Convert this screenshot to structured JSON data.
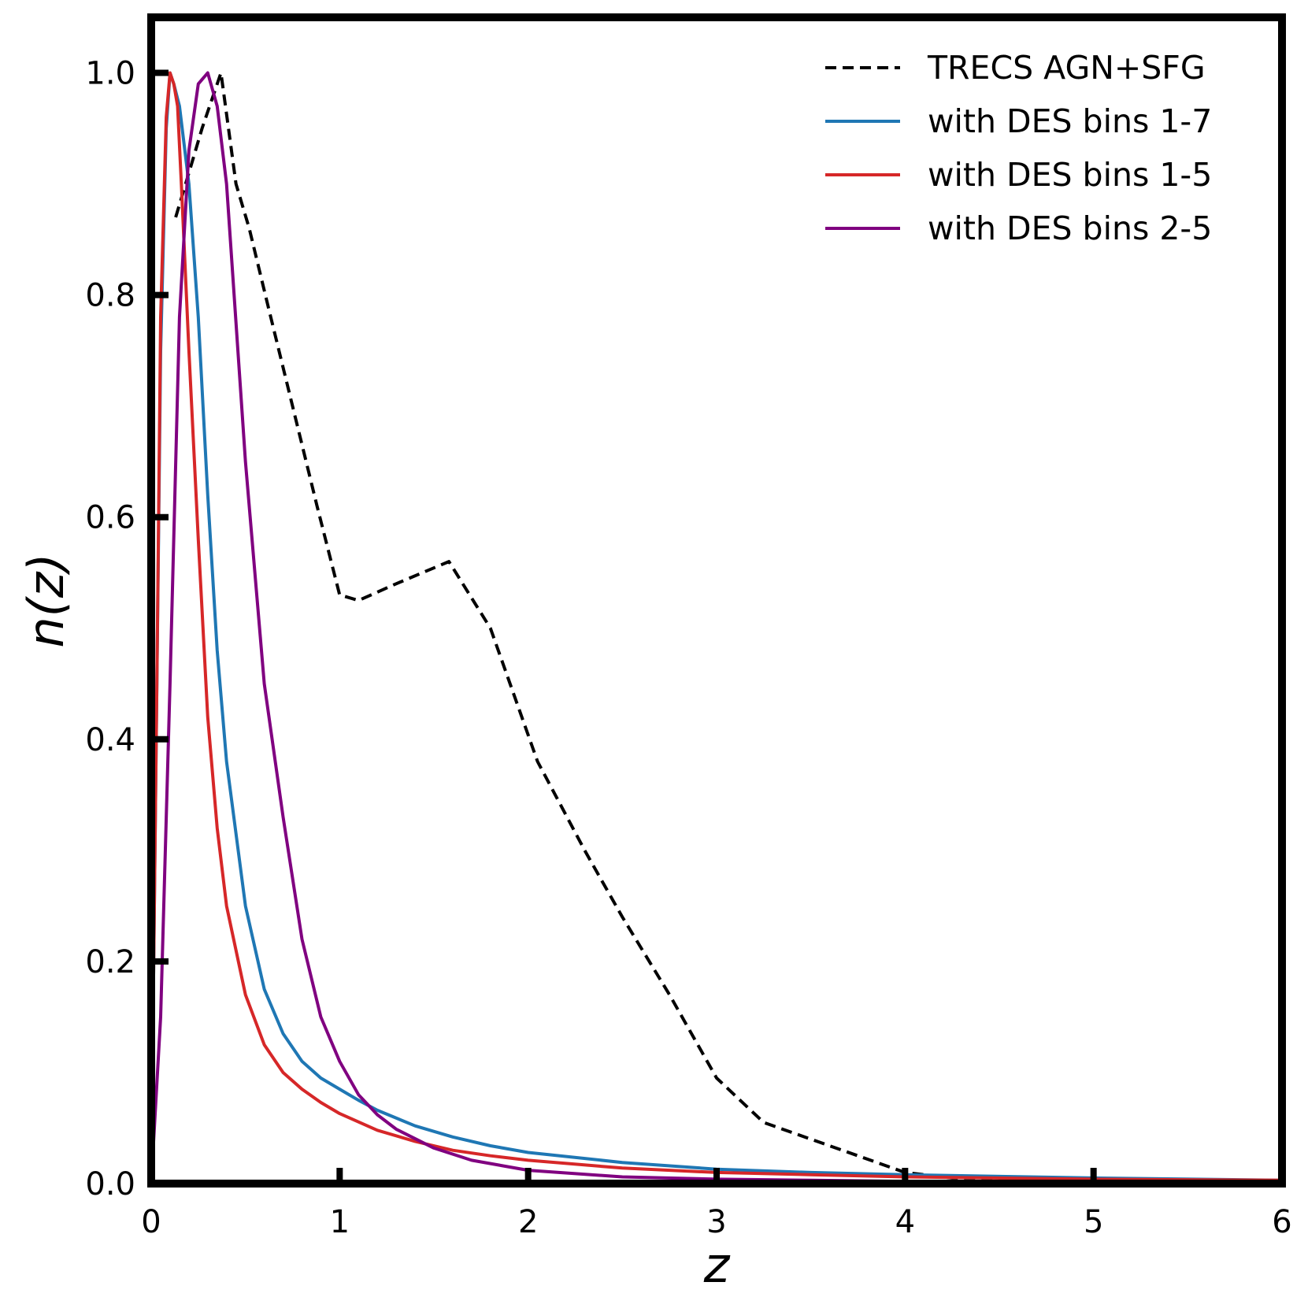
{
  "chart_data": {
    "type": "line",
    "title": "",
    "xlabel": "z",
    "ylabel": "n(z)",
    "xlim": [
      0,
      6
    ],
    "ylim": [
      0,
      1.05
    ],
    "xticks": [
      0,
      1,
      2,
      3,
      4,
      5,
      6
    ],
    "xtick_labels": [
      "0",
      "1",
      "2",
      "3",
      "4",
      "5",
      "6"
    ],
    "yticks": [
      0.0,
      0.2,
      0.4,
      0.6,
      0.8,
      1.0
    ],
    "ytick_labels": [
      "0.0",
      "0.2",
      "0.4",
      "0.6",
      "0.8",
      "1.0"
    ],
    "grid": false,
    "legend_position": "top-right",
    "series": [
      {
        "name": "TRECS AGN+SFG",
        "color": "#000000",
        "style": "dashed",
        "x": [
          0.13,
          0.2,
          0.27,
          0.33,
          0.37,
          0.45,
          0.52,
          0.62,
          0.75,
          0.88,
          1.0,
          1.1,
          1.3,
          1.58,
          1.8,
          2.05,
          2.3,
          2.5,
          2.75,
          3.0,
          3.25,
          3.5,
          3.75,
          4.0,
          4.25,
          4.5,
          5.0,
          6.0
        ],
        "y": [
          0.87,
          0.91,
          0.95,
          0.98,
          1.0,
          0.9,
          0.86,
          0.79,
          0.7,
          0.61,
          0.53,
          0.525,
          0.54,
          0.56,
          0.5,
          0.38,
          0.3,
          0.24,
          0.17,
          0.095,
          0.055,
          0.04,
          0.025,
          0.01,
          0.005,
          0.005,
          0.003,
          0.002
        ]
      },
      {
        "name": "with DES bins 1-7",
        "color": "#1f77b4",
        "style": "solid",
        "x": [
          0.0,
          0.03,
          0.05,
          0.08,
          0.1,
          0.12,
          0.15,
          0.2,
          0.25,
          0.3,
          0.35,
          0.4,
          0.5,
          0.6,
          0.7,
          0.8,
          0.9,
          1.0,
          1.1,
          1.2,
          1.4,
          1.6,
          1.8,
          2.0,
          2.5,
          3.0,
          3.5,
          4.0,
          5.0,
          6.0
        ],
        "y": [
          0.0,
          0.45,
          0.75,
          0.95,
          1.0,
          0.99,
          0.97,
          0.9,
          0.78,
          0.62,
          0.48,
          0.38,
          0.25,
          0.175,
          0.135,
          0.11,
          0.095,
          0.085,
          0.075,
          0.066,
          0.052,
          0.042,
          0.034,
          0.028,
          0.019,
          0.013,
          0.01,
          0.008,
          0.005,
          0.003
        ]
      },
      {
        "name": "with DES bins 1-5",
        "color": "#d62728",
        "style": "solid",
        "x": [
          0.0,
          0.03,
          0.05,
          0.08,
          0.1,
          0.12,
          0.14,
          0.16,
          0.2,
          0.25,
          0.3,
          0.35,
          0.4,
          0.5,
          0.6,
          0.7,
          0.8,
          0.9,
          1.0,
          1.2,
          1.4,
          1.6,
          1.8,
          2.0,
          2.5,
          3.0,
          3.5,
          4.0,
          5.0,
          6.0
        ],
        "y": [
          0.0,
          0.45,
          0.78,
          0.96,
          1.0,
          0.99,
          0.97,
          0.9,
          0.75,
          0.58,
          0.42,
          0.32,
          0.25,
          0.17,
          0.125,
          0.1,
          0.085,
          0.073,
          0.063,
          0.048,
          0.038,
          0.03,
          0.025,
          0.021,
          0.014,
          0.01,
          0.008,
          0.006,
          0.004,
          0.003
        ]
      },
      {
        "name": "with DES bins 2-5",
        "color": "#800080",
        "style": "solid",
        "x": [
          0.0,
          0.05,
          0.1,
          0.15,
          0.2,
          0.25,
          0.3,
          0.35,
          0.4,
          0.5,
          0.6,
          0.7,
          0.8,
          0.9,
          1.0,
          1.1,
          1.2,
          1.3,
          1.5,
          1.7,
          2.0,
          2.5,
          3.0,
          3.5,
          4.0,
          5.0,
          6.0
        ],
        "y": [
          0.0,
          0.15,
          0.45,
          0.78,
          0.93,
          0.99,
          1.0,
          0.97,
          0.9,
          0.65,
          0.45,
          0.33,
          0.22,
          0.15,
          0.11,
          0.08,
          0.062,
          0.049,
          0.032,
          0.021,
          0.012,
          0.006,
          0.004,
          0.003,
          0.002,
          0.001,
          0.001
        ]
      }
    ]
  }
}
